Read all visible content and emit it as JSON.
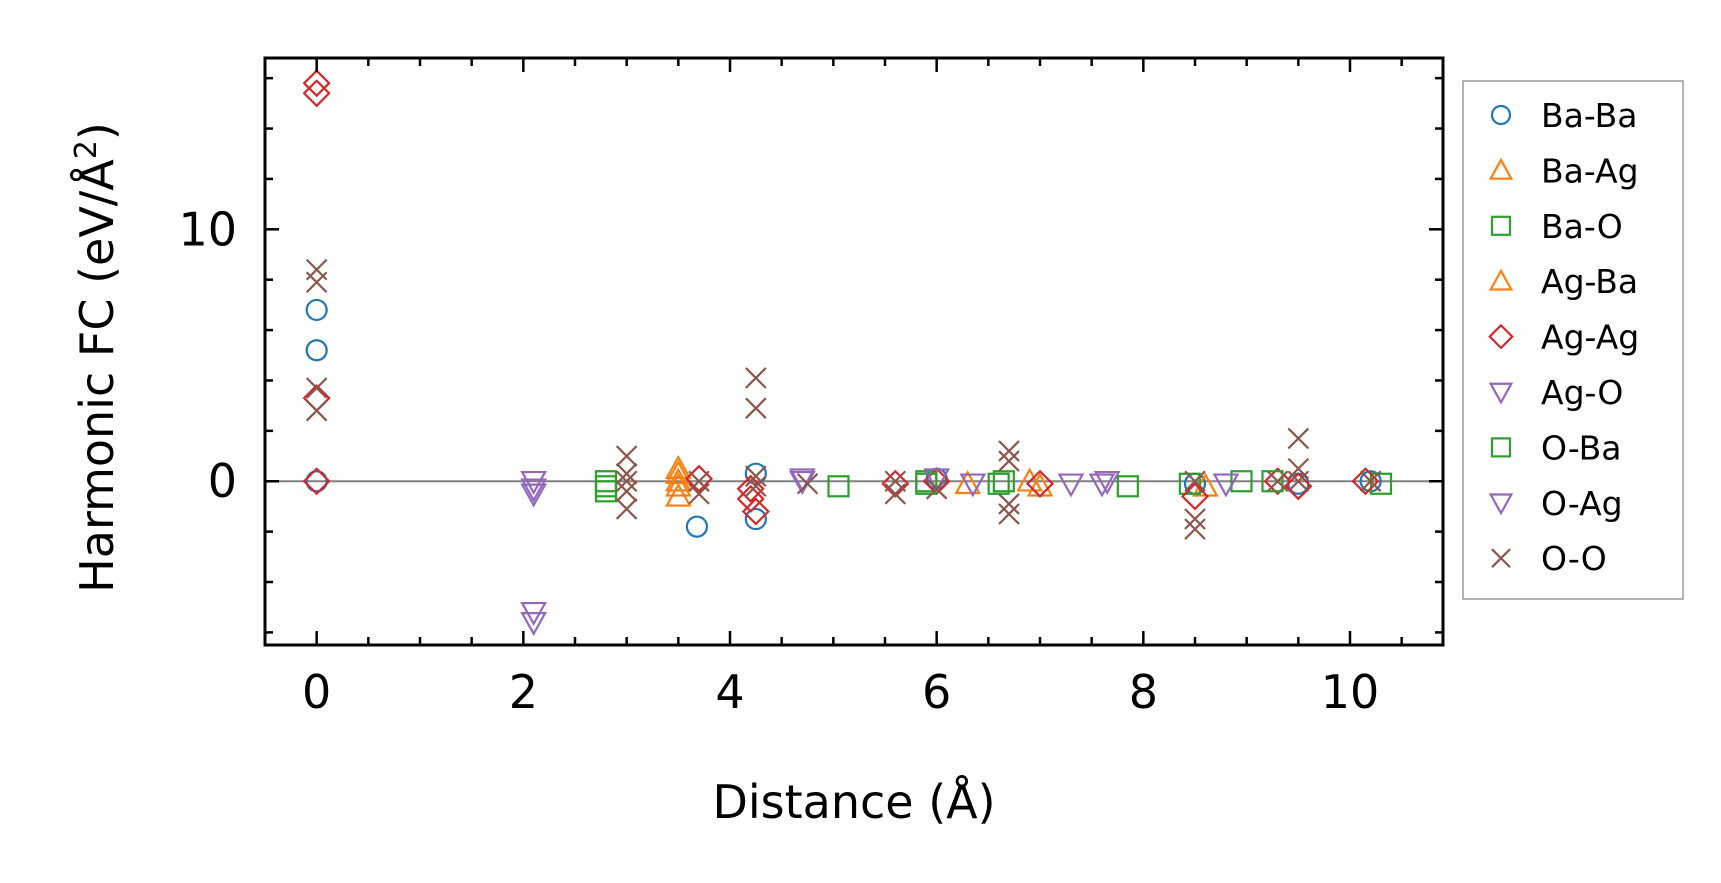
{
  "chart_data": {
    "type": "scatter",
    "title": "",
    "xlabel": "Distance (Å)",
    "ylabel": "Harmonic FC (eV/Å²)",
    "ylabel_main": "Harmonic FC (eV/Å",
    "ylabel_sup": "2",
    "ylabel_end": ")",
    "xlim": [
      -0.5,
      10.9
    ],
    "ylim": [
      -6.5,
      16.8
    ],
    "xticks": [
      0,
      2,
      4,
      6,
      8,
      10
    ],
    "xtick_labels": [
      "0",
      "2",
      "4",
      "6",
      "8",
      "10"
    ],
    "yticks": [
      0,
      10
    ],
    "ytick_labels": [
      "0",
      "10"
    ],
    "reference_line_y": 0,
    "grid": false,
    "legend_position": "outside-right",
    "series": [
      {
        "name": "Ba-Ba",
        "marker": "circle",
        "color": "#1f77b4",
        "points": [
          [
            0,
            6.8
          ],
          [
            0,
            5.2
          ],
          [
            0,
            0
          ],
          [
            3.68,
            -1.8
          ],
          [
            4.25,
            -1.5
          ],
          [
            4.25,
            0.3
          ],
          [
            6.0,
            0.1
          ],
          [
            8.5,
            -0.1
          ],
          [
            9.5,
            -0.1
          ],
          [
            10.2,
            0
          ]
        ]
      },
      {
        "name": "Ba-Ag",
        "marker": "triangle-up",
        "color": "#ff7f0e",
        "points": [
          [
            3.5,
            0.5
          ],
          [
            3.5,
            -0.6
          ],
          [
            3.5,
            0
          ],
          [
            6.3,
            -0.1
          ],
          [
            6.9,
            0
          ],
          [
            8.6,
            -0.2
          ]
        ]
      },
      {
        "name": "Ba-O",
        "marker": "square",
        "color": "#2ca02c",
        "points": [
          [
            2.8,
            -0.4
          ],
          [
            2.8,
            0
          ],
          [
            5.05,
            -0.2
          ],
          [
            5.9,
            0
          ],
          [
            6.6,
            -0.1
          ],
          [
            7.85,
            -0.2
          ],
          [
            8.45,
            -0.1
          ],
          [
            8.95,
            0
          ],
          [
            10.3,
            -0.1
          ]
        ]
      },
      {
        "name": "Ag-Ba",
        "marker": "triangle-up",
        "color": "#ff7f0e",
        "points": [
          [
            3.5,
            -0.2
          ],
          [
            3.5,
            0.3
          ],
          [
            7.0,
            -0.2
          ]
        ]
      },
      {
        "name": "Ag-Ag",
        "marker": "diamond",
        "color": "#d62728",
        "points": [
          [
            0,
            15.8
          ],
          [
            0,
            15.4
          ],
          [
            0,
            3.3
          ],
          [
            0,
            0
          ],
          [
            3.7,
            0.1
          ],
          [
            4.2,
            -0.3
          ],
          [
            4.2,
            -0.7
          ],
          [
            4.25,
            -1.2
          ],
          [
            5.6,
            -0.1
          ],
          [
            6.0,
            0
          ],
          [
            7.0,
            -0.1
          ],
          [
            8.5,
            -0.6
          ],
          [
            9.3,
            0
          ],
          [
            9.5,
            -0.2
          ],
          [
            10.15,
            0
          ]
        ]
      },
      {
        "name": "Ag-O",
        "marker": "triangle-down",
        "color": "#9467bd",
        "points": [
          [
            2.1,
            0
          ],
          [
            2.1,
            -0.3
          ],
          [
            2.1,
            -0.5
          ],
          [
            4.7,
            0.1
          ],
          [
            6.35,
            -0.1
          ],
          [
            7.6,
            -0.1
          ],
          [
            8.8,
            -0.1
          ]
        ]
      },
      {
        "name": "O-Ba",
        "marker": "square",
        "color": "#2ca02c",
        "points": [
          [
            2.8,
            -0.2
          ],
          [
            5.9,
            -0.1
          ],
          [
            6.65,
            0
          ],
          [
            9.25,
            0
          ]
        ]
      },
      {
        "name": "O-Ag",
        "marker": "triangle-down",
        "color": "#9467bd",
        "points": [
          [
            2.1,
            -5.2
          ],
          [
            2.1,
            -5.6
          ],
          [
            4.7,
            0
          ],
          [
            6.0,
            0.1
          ],
          [
            7.3,
            -0.1
          ],
          [
            7.65,
            0
          ]
        ]
      },
      {
        "name": "O-O",
        "marker": "x",
        "color": "#8c564b",
        "points": [
          [
            0,
            8.4
          ],
          [
            0,
            7.9
          ],
          [
            0,
            3.7
          ],
          [
            0,
            2.8
          ],
          [
            3.0,
            1.0
          ],
          [
            3.0,
            0.3
          ],
          [
            3.0,
            0
          ],
          [
            3.0,
            -0.4
          ],
          [
            3.0,
            -1.1
          ],
          [
            3.7,
            0
          ],
          [
            3.7,
            -0.5
          ],
          [
            4.25,
            4.1
          ],
          [
            4.25,
            2.9
          ],
          [
            4.25,
            0.2
          ],
          [
            4.25,
            -0.2
          ],
          [
            4.75,
            -0.1
          ],
          [
            5.6,
            0
          ],
          [
            5.6,
            -0.5
          ],
          [
            6.0,
            -0.3
          ],
          [
            6.7,
            1.2
          ],
          [
            6.7,
            0.8
          ],
          [
            6.7,
            -0.9
          ],
          [
            6.7,
            -1.3
          ],
          [
            8.5,
            -1.5
          ],
          [
            8.5,
            -1.9
          ],
          [
            8.5,
            0
          ],
          [
            9.3,
            0
          ],
          [
            9.5,
            1.7
          ],
          [
            9.5,
            0.5
          ],
          [
            9.5,
            0
          ],
          [
            10.2,
            0
          ]
        ]
      }
    ]
  }
}
